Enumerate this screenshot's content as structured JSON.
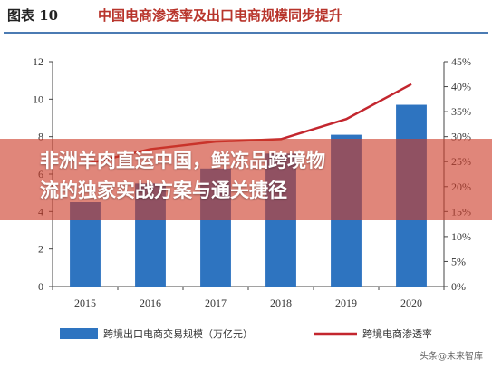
{
  "header": {
    "figure_label": "图表 10",
    "title": "中国电商渗透率及出口电商规模同步提升"
  },
  "overlay": {
    "line1": "非洲羊肉直运中国，鲜冻品跨境物",
    "line2": "流的独家实战方案与通关捷径"
  },
  "watermark": "头条@未来智库",
  "colors": {
    "bar": "#2e74c0",
    "line": "#c3262e",
    "title_red": "#b8342b",
    "overlay": "#cd3c28"
  },
  "chart_data": {
    "type": "bar",
    "categories": [
      "2015",
      "2016",
      "2017",
      "2018",
      "2019",
      "2020"
    ],
    "series": [
      {
        "name": "跨境出口电商交易规模（万亿元）",
        "type": "bar",
        "axis": "left",
        "values": [
          4.5,
          5.5,
          6.3,
          7.1,
          8.1,
          9.7
        ]
      },
      {
        "name": "跨境电商渗透率",
        "type": "line",
        "axis": "right",
        "values": [
          24.5,
          27.5,
          29.0,
          29.5,
          33.5,
          40.5
        ]
      }
    ],
    "y_left": {
      "min": 0,
      "max": 12,
      "ticks": [
        "0",
        "2",
        "4",
        "6",
        "8",
        "10",
        "12"
      ]
    },
    "y_right": {
      "min": 0,
      "max": 45,
      "ticks": [
        "0%",
        "5%",
        "10%",
        "15%",
        "20%",
        "25%",
        "30%",
        "35%",
        "40%",
        "45%"
      ]
    },
    "legend": {
      "placement": "bottom",
      "bar_label": "跨境出口电商交易规模（万亿元）",
      "line_label": "跨境电商渗透率"
    },
    "grid": false
  }
}
